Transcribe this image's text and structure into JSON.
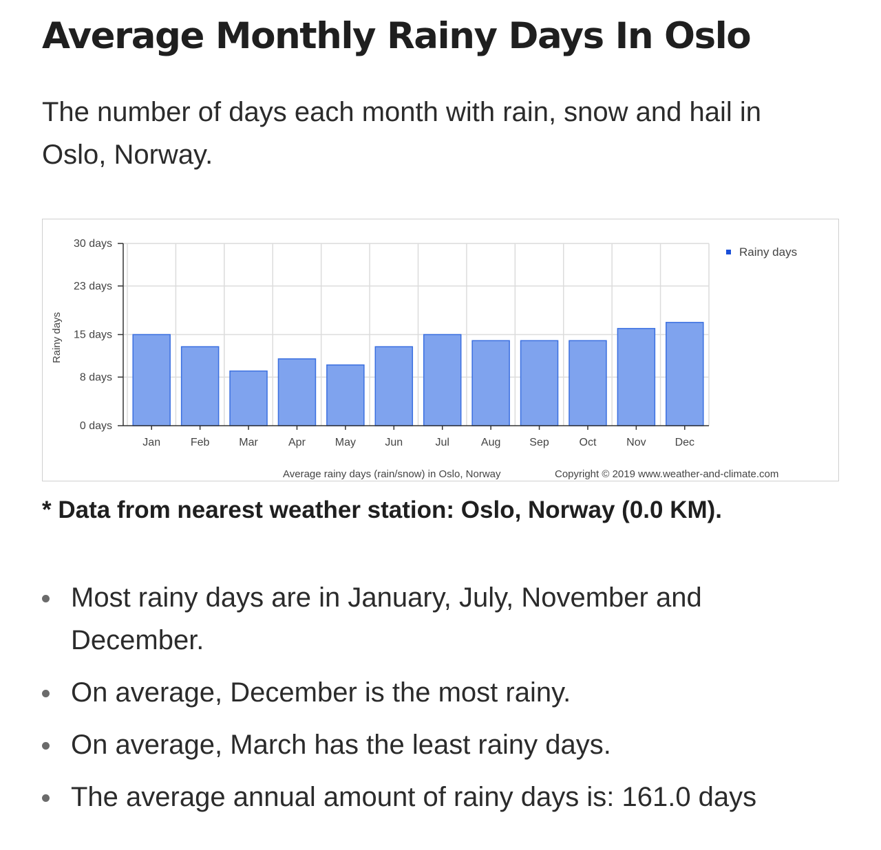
{
  "page": {
    "title": "Average Monthly Rainy Days In Oslo",
    "intro": "The number of days each month with rain, snow and hail in Oslo, Norway.",
    "station_note": "* Data from nearest weather station: Oslo, Norway (0.0 KM).",
    "facts": [
      "Most rainy days are in January, July, November and December.",
      "On average, December is the most rainy.",
      "On average, March has the least rainy days.",
      "The average annual amount of rainy days is: 161.0 days"
    ]
  },
  "chart_data": {
    "type": "bar",
    "categories": [
      "Jan",
      "Feb",
      "Mar",
      "Apr",
      "May",
      "Jun",
      "Jul",
      "Aug",
      "Sep",
      "Oct",
      "Nov",
      "Dec"
    ],
    "series": [
      {
        "name": "Rainy days",
        "values": [
          15,
          13,
          9,
          11,
          10,
          13,
          15,
          14,
          14,
          14,
          16,
          17
        ]
      }
    ],
    "ylim": [
      0,
      30
    ],
    "yticks": [
      0,
      8,
      15,
      23,
      30
    ],
    "ytick_labels": [
      "0 days",
      "8 days",
      "15 days",
      "23 days",
      "30 days"
    ],
    "ylabel": "Rainy days",
    "xlabel": "",
    "caption": "Average rainy days (rain/snow) in Oslo, Norway",
    "copyright": "Copyright © 2019 www.weather-and-climate.com",
    "legend_position": "top-right",
    "grid": true,
    "colors": {
      "bar_fill": "#7fa3ee",
      "bar_stroke": "#3a6fe0",
      "legend_marker": "#1a4fd8",
      "grid": "#dcdcdc",
      "axis": "#333333"
    }
  }
}
